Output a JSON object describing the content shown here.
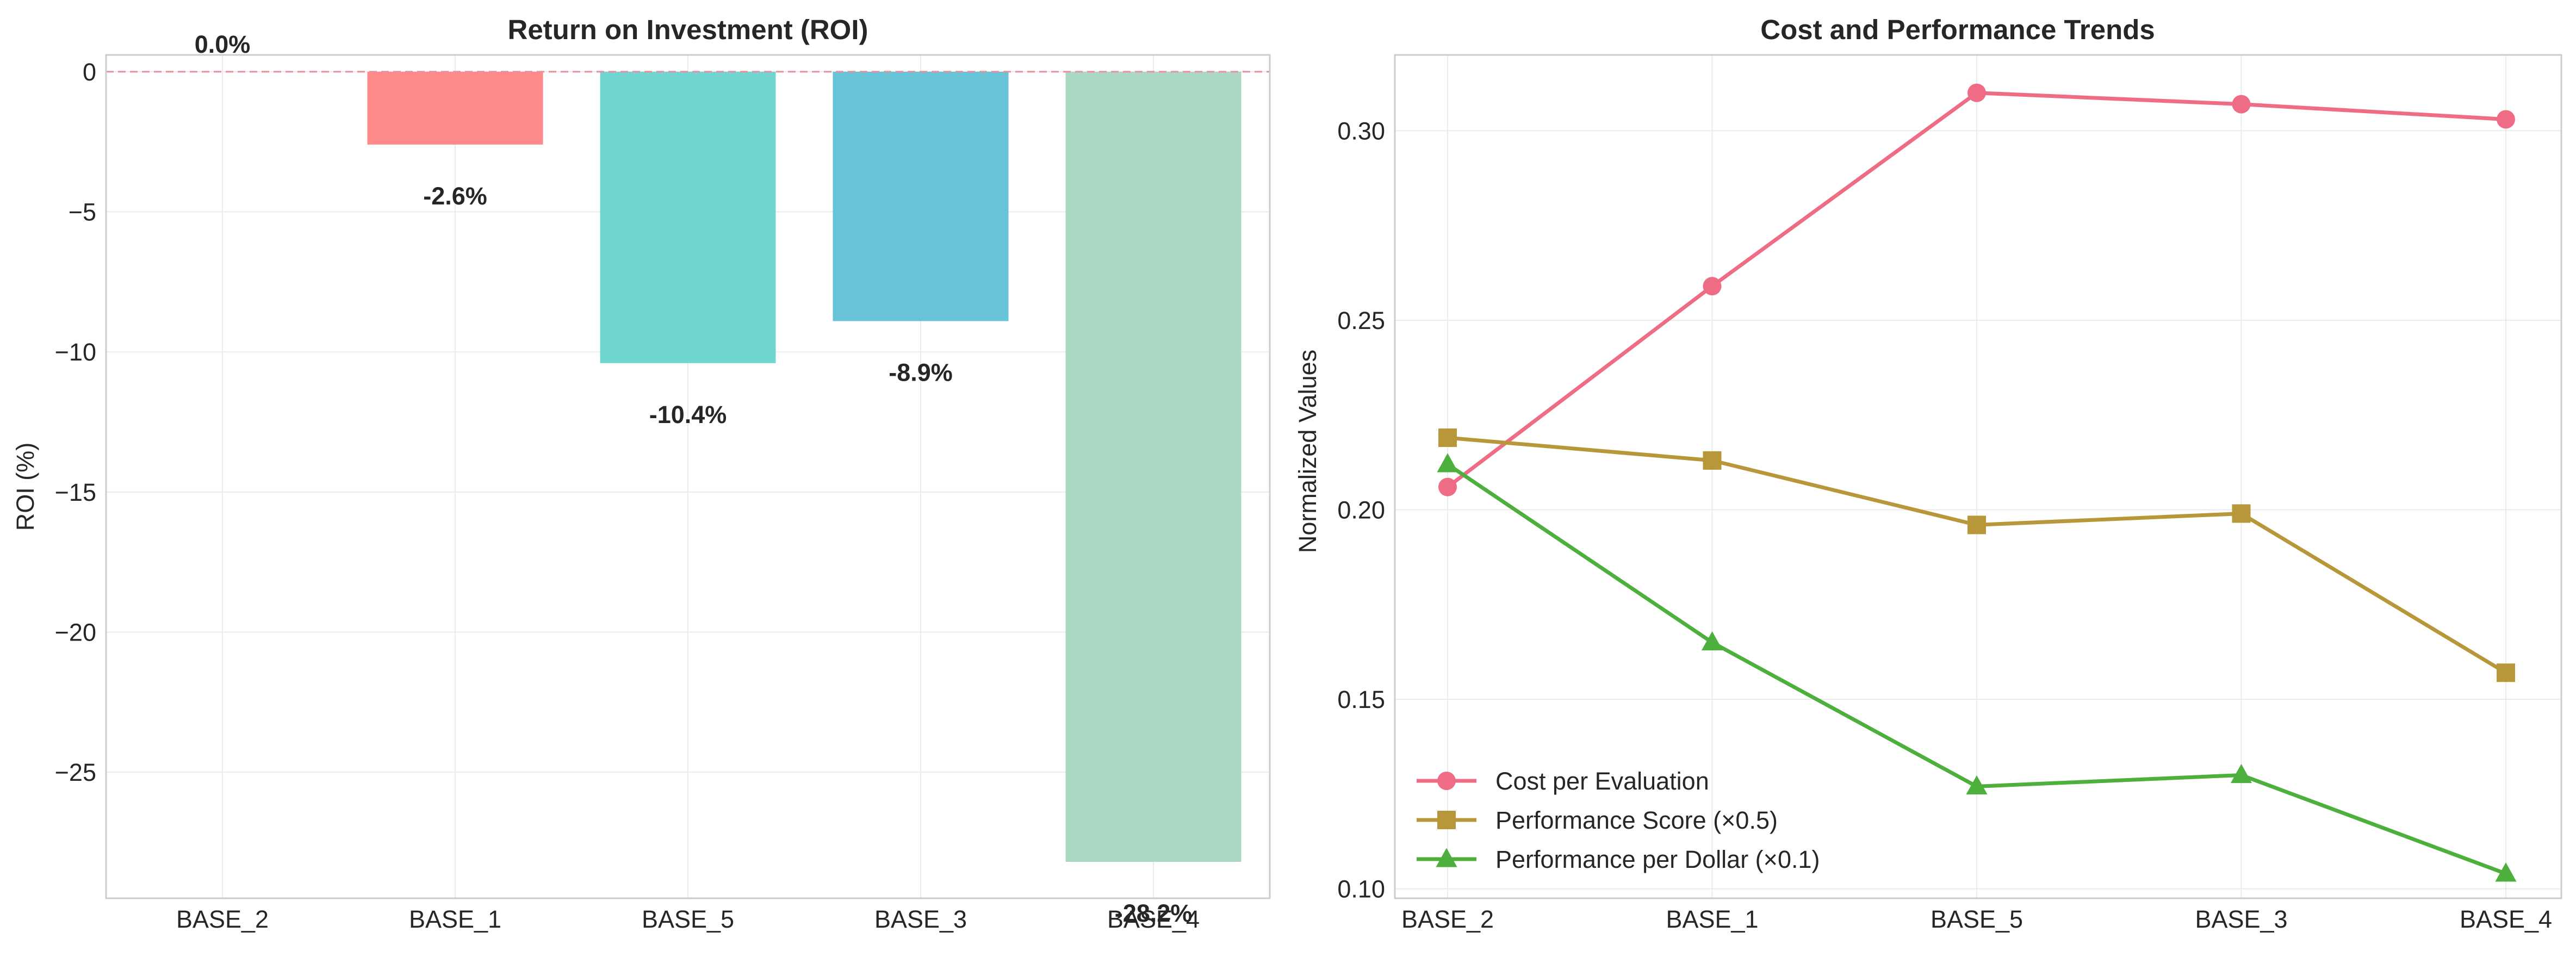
{
  "chart_data": [
    {
      "type": "bar",
      "title": "Return on Investment (ROI)",
      "xlabel": "",
      "ylabel": "ROI (%)",
      "ylim": [
        -29.5,
        0.6
      ],
      "yticks": [
        0,
        -5,
        -10,
        -15,
        -20,
        -25
      ],
      "ytick_labels": [
        "0",
        "−5",
        "−10",
        "−15",
        "−20",
        "−25"
      ],
      "categories": [
        "BASE_2",
        "BASE_1",
        "BASE_5",
        "BASE_3",
        "BASE_4"
      ],
      "values": [
        0.0,
        -2.6,
        -10.4,
        -8.9,
        -28.2
      ],
      "data_labels": [
        "0.0%",
        "-2.6%",
        "-10.4%",
        "-8.9%",
        "-28.2%"
      ],
      "colors": [
        "#f77189",
        "#ff8a8a",
        "#72d6d0",
        "#67c3d8",
        "#abd8c3"
      ],
      "reference_line": 0,
      "grid": true
    },
    {
      "type": "line",
      "title": "Cost and Performance Trends",
      "xlabel": "",
      "ylabel": "Normalized Values",
      "ylim": [
        0.0975,
        0.32
      ],
      "yticks": [
        0.1,
        0.15,
        0.2,
        0.25,
        0.3
      ],
      "ytick_labels": [
        "0.10",
        "0.15",
        "0.20",
        "0.25",
        "0.30"
      ],
      "categories": [
        "BASE_2",
        "BASE_1",
        "BASE_5",
        "BASE_3",
        "BASE_4"
      ],
      "legend_position": "lower-left",
      "grid": true,
      "series": [
        {
          "name": "Cost per Evaluation",
          "values": [
            0.206,
            0.259,
            0.31,
            0.307,
            0.303
          ],
          "color": "#ee6d85",
          "marker": "circle"
        },
        {
          "name": "Performance Score (×0.5)",
          "values": [
            0.219,
            0.213,
            0.196,
            0.199,
            0.157
          ],
          "color": "#b8973b",
          "marker": "square"
        },
        {
          "name": "Performance per Dollar (×0.1)",
          "values": [
            0.212,
            0.165,
            0.127,
            0.13,
            0.104
          ],
          "color": "#4daf3c",
          "marker": "triangle"
        }
      ]
    }
  ]
}
